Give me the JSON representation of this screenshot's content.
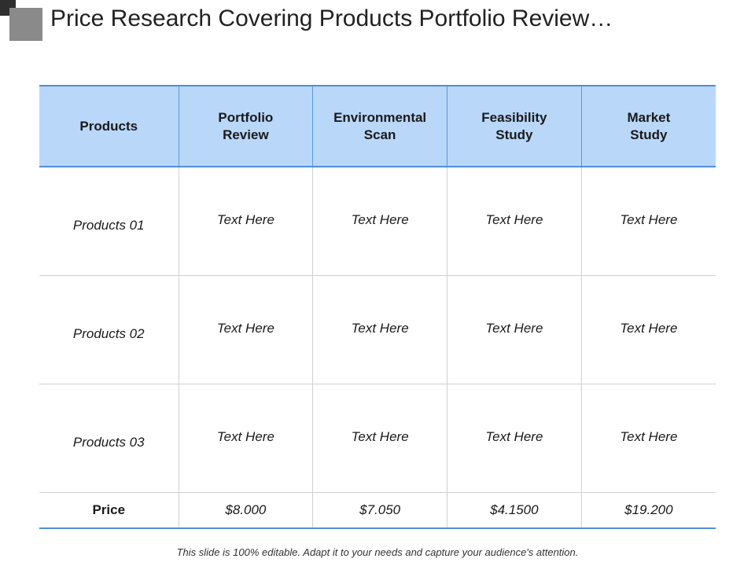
{
  "title": "Price Research Covering Products Portfolio Review…",
  "table": {
    "headers": [
      "Products",
      "Portfolio Review",
      "Environmental Scan",
      "Feasibility Study",
      "Market Study"
    ],
    "rows": [
      {
        "label": "Products 01",
        "cells": [
          "Text Here",
          "Text Here",
          "Text Here",
          "Text Here"
        ]
      },
      {
        "label": "Products 02",
        "cells": [
          "Text Here",
          "Text Here",
          "Text Here",
          "Text Here"
        ]
      },
      {
        "label": "Products 03",
        "cells": [
          "Text Here",
          "Text Here",
          "Text Here",
          "Text Here"
        ]
      }
    ],
    "price_row": {
      "label": "Price",
      "cells": [
        "$8.000",
        "$7.050",
        "$4.1500",
        "$19.200"
      ]
    }
  },
  "footer": "This slide is 100% editable. Adapt it to your needs and capture your audience's attention.",
  "colors": {
    "header_bg": "#b9d7f9",
    "border_blue": "#4f8fd8",
    "grid_gray": "#cfcfcf"
  }
}
